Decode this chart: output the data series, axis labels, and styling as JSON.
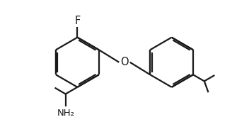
{
  "bg_color": "#ffffff",
  "line_color": "#1a1a1a",
  "line_width": 1.6,
  "font_size": 9.5,
  "figsize": [
    3.52,
    1.79
  ],
  "dpi": 100,
  "xlim": [
    0,
    10
  ],
  "ylim": [
    0,
    5
  ]
}
